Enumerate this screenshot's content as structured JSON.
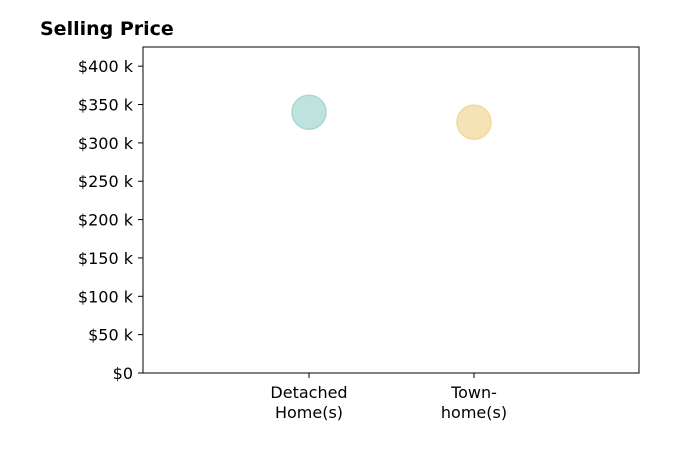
{
  "chart_data": {
    "type": "scatter",
    "title": "Selling Price",
    "xlabel": "",
    "ylabel": "",
    "categories": [
      [
        "Detached",
        "Home(s)"
      ],
      [
        "Town-",
        "home(s)"
      ]
    ],
    "values": [
      340000,
      327000
    ],
    "point_colors": [
      "#a8d8d3",
      "#f2d99c"
    ],
    "ylim": [
      0,
      425000
    ],
    "y_ticks": [
      {
        "value": 0,
        "label": "$0"
      },
      {
        "value": 50000,
        "label": "$50 k"
      },
      {
        "value": 100000,
        "label": "$100 k"
      },
      {
        "value": 150000,
        "label": "$150 k"
      },
      {
        "value": 200000,
        "label": "$200 k"
      },
      {
        "value": 250000,
        "label": "$250 k"
      },
      {
        "value": 300000,
        "label": "$300 k"
      },
      {
        "value": 350000,
        "label": "$350 k"
      },
      {
        "value": 400000,
        "label": "$400 k"
      }
    ],
    "grid": false,
    "legend": "none"
  }
}
